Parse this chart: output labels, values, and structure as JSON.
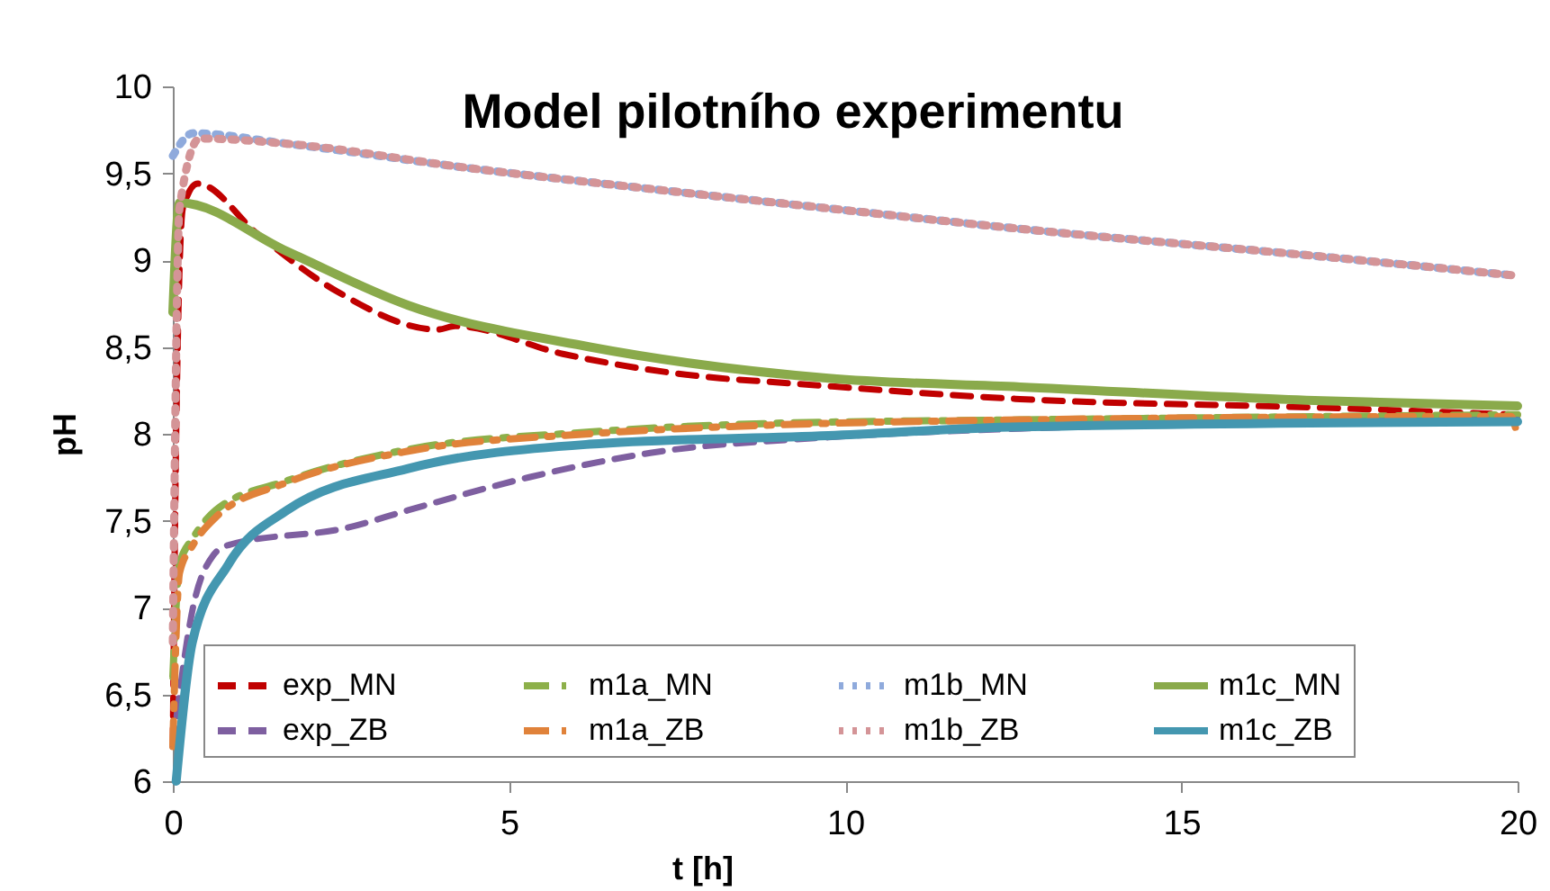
{
  "chart_data": {
    "type": "line",
    "title": "Model pilotního experimentu",
    "xlabel": "t [h]",
    "ylabel": "pH",
    "xlim": [
      0,
      20
    ],
    "xticks": [
      0,
      5,
      10,
      15,
      20
    ],
    "ylim": [
      6,
      10
    ],
    "yticks": [
      6,
      {
        "value": 6.5,
        "label": "6,5"
      },
      7,
      {
        "value": 7.5,
        "label": "7,5"
      },
      8,
      {
        "value": 8.5,
        "label": "8,5"
      },
      9,
      {
        "value": 9.5,
        "label": "9,5"
      },
      10
    ],
    "legend": "bottom",
    "series": [
      {
        "name": "exp_MN",
        "color": "#c00000",
        "line_style": "dashed",
        "x": [
          0,
          0.05,
          0.15,
          0.37,
          1.26,
          2.44,
          3.94,
          4.2,
          5.8,
          8.14,
          8.86,
          12.6,
          17.1,
          20
        ],
        "values": [
          6.2,
          8.0,
          9.3,
          9.44,
          9.15,
          8.82,
          8.6,
          8.62,
          8.46,
          8.32,
          8.3,
          8.2,
          8.15,
          8.11
        ]
      },
      {
        "name": "m1a_MN",
        "color": "#8db04a",
        "line_style": "dashdot",
        "x": [
          0,
          0.1,
          0.3,
          0.64,
          1.7,
          3.5,
          6.2,
          8.9,
          12.6,
          20
        ],
        "values": [
          6.6,
          7.25,
          7.4,
          7.56,
          7.73,
          7.91,
          8.01,
          8.06,
          8.08,
          8.11
        ]
      },
      {
        "name": "m1b_MN",
        "color": "#8faadc",
        "line_style": "dotted",
        "x": [
          0,
          0.3,
          1.7,
          4.4,
          7.1,
          9.7,
          12.6,
          17.1,
          20
        ],
        "values": [
          9.6,
          9.73,
          9.67,
          9.53,
          9.41,
          9.3,
          9.18,
          9.02,
          8.91
        ]
      },
      {
        "name": "m1c_MN",
        "color": "#8aaa4b",
        "line_style": "solid",
        "x": [
          0,
          0.1,
          1.7,
          3.5,
          6.2,
          9.75,
          12.6,
          17.1,
          20
        ],
        "values": [
          8.7,
          9.33,
          9.05,
          8.74,
          8.5,
          8.32,
          8.27,
          8.19,
          8.16
        ]
      },
      {
        "name": "exp_ZB",
        "color": "#7e5fa0",
        "line_style": "dashed",
        "x": [
          0,
          0.3,
          0.6,
          0.83,
          2.6,
          3.5,
          5.3,
          7.1,
          9.75,
          12.6,
          20
        ],
        "values": [
          6.2,
          7.0,
          7.3,
          7.36,
          7.46,
          7.56,
          7.75,
          7.89,
          7.98,
          8.03,
          8.08
        ]
      },
      {
        "name": "m1a_ZB",
        "color": "#e0823a",
        "line_style": "dashdot",
        "x": [
          0,
          0.1,
          0.3,
          0.64,
          1.7,
          3.5,
          6.2,
          8.9,
          12.6,
          19.9,
          20
        ],
        "values": [
          6.2,
          7.2,
          7.36,
          7.52,
          7.72,
          7.9,
          8.0,
          8.05,
          8.08,
          8.1,
          7.98
        ]
      },
      {
        "name": "m1b_ZB",
        "color": "#d49497",
        "line_style": "dotted",
        "x": [
          0,
          0.1,
          0.4,
          1.7,
          4.4,
          7.1,
          9.7,
          12.6,
          17.1,
          20
        ],
        "values": [
          6.8,
          9.3,
          9.7,
          9.67,
          9.53,
          9.41,
          9.3,
          9.18,
          9.02,
          8.91
        ]
      },
      {
        "name": "m1c_ZB",
        "color": "#4497b0",
        "line_style": "solid",
        "x": [
          0.05,
          0.29,
          0.83,
          1.7,
          3.5,
          6.2,
          9.75,
          12.6,
          20
        ],
        "values": [
          6.0,
          6.8,
          7.25,
          7.56,
          7.8,
          7.94,
          7.99,
          8.04,
          8.07
        ]
      }
    ]
  }
}
